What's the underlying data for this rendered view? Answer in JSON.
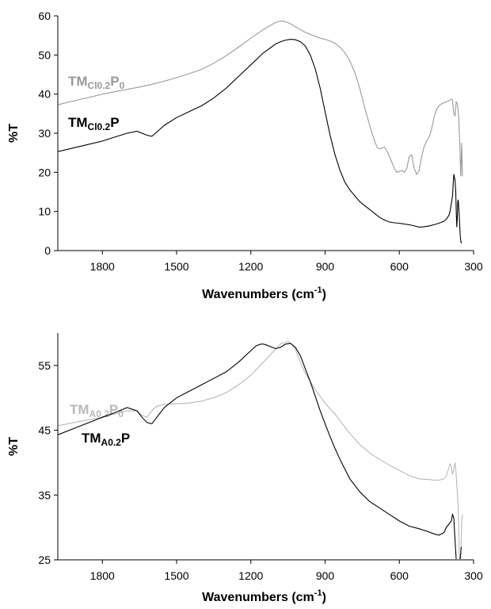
{
  "chart_data": [
    {
      "type": "line",
      "xlabel": "Wavenumbers (cm",
      "xlabel_sup": "-1",
      "xlabel_end": ")",
      "ylabel": "%T",
      "xlim": [
        1980,
        300
      ],
      "ylim": [
        0,
        60
      ],
      "xticks": [
        1800,
        1500,
        1200,
        900,
        600,
        300
      ],
      "yticks": [
        0,
        10,
        20,
        30,
        40,
        50,
        60
      ],
      "series": [
        {
          "name_main": "TM",
          "name_sub1": "Cl0.2",
          "name_mid": "P",
          "name_sub2": "0",
          "color": "#999999",
          "x": [
            1980,
            1900,
            1800,
            1700,
            1650,
            1600,
            1550,
            1500,
            1450,
            1400,
            1350,
            1300,
            1250,
            1200,
            1150,
            1100,
            1080,
            1060,
            1040,
            1020,
            1000,
            980,
            960,
            940,
            920,
            900,
            880,
            860,
            840,
            820,
            800,
            780,
            760,
            740,
            720,
            700,
            690,
            680,
            670,
            660,
            650,
            640,
            630,
            620,
            610,
            600,
            590,
            580,
            570,
            560,
            550,
            540,
            530,
            520,
            510,
            500,
            490,
            480,
            470,
            460,
            450,
            440,
            430,
            420,
            410,
            400,
            390,
            385,
            380,
            375,
            370,
            365,
            360,
            355,
            352,
            350,
            348,
            345
          ],
          "y": [
            37.3,
            38.5,
            40.0,
            41.2,
            41.8,
            42.5,
            43.3,
            44.2,
            45.2,
            46.3,
            47.9,
            49.8,
            52.0,
            54.3,
            56.5,
            58.3,
            58.7,
            58.5,
            58.0,
            57.2,
            56.5,
            55.8,
            55.3,
            54.8,
            54.3,
            54.0,
            53.6,
            53.0,
            52.0,
            50.6,
            48.5,
            45.5,
            41.5,
            36.5,
            32.0,
            28.0,
            26.5,
            26.0,
            26.2,
            26.5,
            25.5,
            24.0,
            22.5,
            21.0,
            20.0,
            20.2,
            20.5,
            20.0,
            21.0,
            24.0,
            24.5,
            21.0,
            19.5,
            20.5,
            24.0,
            26.5,
            28.0,
            29.0,
            31.0,
            34.0,
            36.0,
            37.0,
            37.5,
            37.8,
            38.0,
            38.3,
            38.7,
            38.5,
            35.0,
            34.5,
            38.0,
            37.5,
            34.0,
            26.0,
            19.0,
            23.0,
            27.5,
            19.0
          ]
        },
        {
          "name_main": "TM",
          "name_sub1": "Cl0.2",
          "name_mid": "P",
          "name_sub2": "",
          "color": "#000000",
          "x": [
            1980,
            1900,
            1800,
            1750,
            1700,
            1660,
            1640,
            1620,
            1600,
            1580,
            1550,
            1500,
            1450,
            1400,
            1350,
            1300,
            1250,
            1200,
            1150,
            1100,
            1080,
            1060,
            1040,
            1020,
            1000,
            980,
            960,
            940,
            920,
            900,
            880,
            860,
            840,
            820,
            800,
            780,
            760,
            740,
            720,
            700,
            680,
            660,
            640,
            620,
            600,
            580,
            560,
            540,
            520,
            500,
            480,
            460,
            440,
            420,
            410,
            400,
            395,
            390,
            385,
            380,
            375,
            372,
            370,
            368,
            366,
            364,
            362,
            360,
            358,
            356,
            354,
            352,
            350,
            348
          ],
          "y": [
            25.3,
            26.5,
            28.0,
            29.0,
            30.0,
            30.5,
            30.0,
            29.5,
            29.2,
            30.3,
            32.0,
            34.0,
            35.5,
            37.0,
            39.0,
            41.5,
            44.5,
            47.5,
            50.5,
            52.8,
            53.4,
            53.8,
            54.0,
            53.9,
            53.4,
            52.3,
            50.0,
            46.5,
            41.5,
            35.5,
            29.5,
            24.5,
            20.5,
            17.5,
            15.5,
            14.0,
            12.5,
            11.5,
            10.5,
            9.5,
            8.5,
            7.8,
            7.3,
            7.1,
            7.0,
            6.8,
            6.6,
            6.3,
            6.0,
            6.1,
            6.3,
            6.6,
            7.0,
            7.5,
            8.0,
            9.0,
            10.0,
            12.0,
            14.0,
            19.5,
            18.0,
            15.0,
            10.0,
            6.0,
            8.0,
            12.5,
            13.0,
            11.0,
            9.0,
            6.5,
            4.0,
            2.5,
            2.0,
            2.2
          ]
        }
      ]
    },
    {
      "type": "line",
      "xlabel": "Wavenumbers (cm",
      "xlabel_sup": "-1",
      "xlabel_end": ")",
      "ylabel": "%T",
      "xlim": [
        1980,
        300
      ],
      "ylim": [
        25,
        60
      ],
      "xticks": [
        1800,
        1500,
        1200,
        900,
        600,
        300
      ],
      "yticks": [
        25,
        35,
        45,
        55
      ],
      "series": [
        {
          "name_main": "TM",
          "name_sub1": "A0.2",
          "name_mid": "P",
          "name_sub2": "0",
          "color": "#b8b8b8",
          "x": [
            1980,
            1900,
            1800,
            1750,
            1700,
            1660,
            1640,
            1620,
            1600,
            1580,
            1550,
            1500,
            1450,
            1400,
            1350,
            1300,
            1250,
            1200,
            1150,
            1100,
            1080,
            1060,
            1050,
            1040,
            1020,
            1000,
            980,
            960,
            940,
            920,
            900,
            880,
            860,
            840,
            820,
            800,
            760,
            720,
            680,
            640,
            600,
            560,
            520,
            480,
            460,
            440,
            420,
            410,
            400,
            395,
            390,
            385,
            380,
            375,
            372,
            370,
            368,
            365,
            362,
            360,
            358,
            355,
            352,
            350,
            348,
            345
          ],
          "y": [
            45.7,
            46.3,
            47.0,
            47.5,
            48.0,
            48.0,
            47.3,
            47.0,
            48.0,
            48.7,
            49.0,
            49.1,
            49.2,
            49.5,
            50.0,
            50.8,
            52.0,
            53.5,
            55.5,
            57.5,
            58.3,
            58.6,
            58.7,
            58.5,
            57.5,
            55.5,
            53.8,
            52.5,
            51.3,
            50.2,
            49.2,
            48.3,
            47.5,
            46.5,
            45.5,
            44.5,
            42.8,
            41.5,
            40.5,
            39.6,
            38.8,
            38.0,
            37.5,
            37.4,
            37.3,
            37.3,
            37.5,
            38.0,
            39.2,
            39.8,
            39.5,
            38.2,
            39.0,
            40.0,
            39.0,
            38.0,
            36.5,
            35.0,
            33.0,
            29.0,
            26.0,
            24.2,
            25.0,
            28.0,
            31.0,
            32.0
          ]
        },
        {
          "name_main": "TM",
          "name_sub1": "A0.2",
          "name_mid": "P",
          "name_sub2": "",
          "color": "#000000",
          "x": [
            1980,
            1900,
            1800,
            1750,
            1700,
            1660,
            1640,
            1620,
            1600,
            1580,
            1550,
            1500,
            1450,
            1400,
            1350,
            1300,
            1250,
            1200,
            1180,
            1160,
            1150,
            1140,
            1120,
            1100,
            1080,
            1060,
            1040,
            1020,
            1000,
            980,
            960,
            940,
            920,
            900,
            880,
            860,
            840,
            820,
            800,
            760,
            720,
            680,
            640,
            600,
            560,
            520,
            480,
            460,
            440,
            420,
            410,
            400,
            390,
            385,
            380,
            375,
            370,
            365,
            360,
            355,
            352,
            350
          ],
          "y": [
            44.3,
            45.5,
            47.0,
            47.7,
            48.5,
            48.0,
            47.0,
            46.2,
            46.0,
            47.0,
            48.5,
            50.0,
            51.0,
            52.0,
            53.0,
            54.0,
            55.5,
            57.3,
            58.0,
            58.3,
            58.3,
            58.2,
            57.9,
            57.6,
            57.8,
            58.3,
            58.4,
            57.8,
            56.5,
            54.5,
            52.5,
            50.3,
            48.0,
            46.0,
            44.0,
            42.2,
            40.5,
            39.0,
            37.5,
            35.5,
            34.0,
            33.0,
            32.0,
            31.0,
            30.2,
            29.8,
            29.3,
            29.0,
            28.8,
            29.2,
            30.0,
            30.5,
            31.0,
            32.0,
            31.5,
            28.0,
            25.0,
            24.0,
            24.5,
            25.0,
            26.0,
            27.0
          ]
        }
      ]
    }
  ]
}
